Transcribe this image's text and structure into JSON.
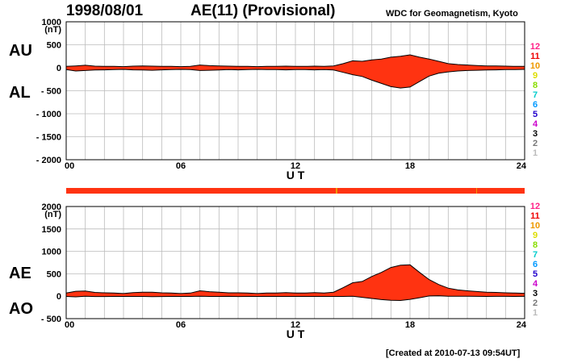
{
  "header": {
    "date": "1998/08/01",
    "title": "AE(11) (Provisional)",
    "institution": "WDC for Geomagnetism, Kyoto",
    "created": "[Created at 2010-07-13 09:54UT]"
  },
  "colors": {
    "fill": "#ff3311",
    "line": "#000000",
    "grid": "#bbbbbb"
  },
  "station_counts": [
    "12",
    "11",
    "10",
    "9",
    "8",
    "7",
    "6",
    "5",
    "4",
    "3",
    "2",
    "1"
  ],
  "station_colors": [
    "#ff2288",
    "#ee0000",
    "#ee9900",
    "#dddd00",
    "#88dd00",
    "#00cccc",
    "#0099ff",
    "#2200cc",
    "#cc00cc",
    "#000000",
    "#777777",
    "#bbbbbb"
  ],
  "chart_data": [
    {
      "type": "area",
      "panel_labels": [
        "AU",
        "AL"
      ],
      "unit": "(nT)",
      "xlabel": "U T",
      "xlim": [
        0,
        24
      ],
      "ylim": [
        -2000,
        1000
      ],
      "xticks": [
        "00",
        "06",
        "12",
        "18",
        "24"
      ],
      "yticks": [
        "1000",
        "500",
        "0",
        "- 500",
        "- 1000",
        "- 1500",
        "- 2000"
      ],
      "grid": true,
      "x": [
        0,
        0.5,
        1,
        1.5,
        2,
        2.5,
        3,
        3.5,
        4,
        4.5,
        5,
        5.5,
        6,
        6.5,
        7,
        7.5,
        8,
        8.5,
        9,
        9.5,
        10,
        10.5,
        11,
        11.5,
        12,
        12.5,
        13,
        13.5,
        14,
        14.5,
        15,
        15.5,
        16,
        16.5,
        17,
        17.5,
        18,
        18.5,
        19,
        19.5,
        20,
        20.5,
        21,
        21.5,
        22,
        22.5,
        23,
        23.5,
        24
      ],
      "series": [
        {
          "name": "AU",
          "values": [
            30,
            40,
            55,
            35,
            30,
            30,
            25,
            35,
            40,
            35,
            30,
            30,
            25,
            30,
            60,
            45,
            40,
            35,
            30,
            30,
            25,
            30,
            30,
            35,
            30,
            30,
            35,
            30,
            40,
            90,
            150,
            140,
            170,
            190,
            230,
            250,
            280,
            230,
            190,
            140,
            90,
            70,
            60,
            50,
            40,
            40,
            35,
            30,
            30
          ]
        },
        {
          "name": "AL",
          "values": [
            -40,
            -70,
            -60,
            -50,
            -45,
            -40,
            -35,
            -45,
            -50,
            -55,
            -45,
            -40,
            -35,
            -40,
            -60,
            -55,
            -50,
            -40,
            -45,
            -40,
            -35,
            -40,
            -40,
            -45,
            -40,
            -40,
            -45,
            -40,
            -50,
            -100,
            -150,
            -190,
            -270,
            -340,
            -410,
            -440,
            -420,
            -300,
            -180,
            -120,
            -90,
            -70,
            -60,
            -55,
            -50,
            -45,
            -40,
            -40,
            -35
          ]
        }
      ]
    },
    {
      "type": "area",
      "panel_labels": [
        "AE",
        "AO"
      ],
      "unit": "(nT)",
      "xlabel": "U T",
      "xlim": [
        0,
        24
      ],
      "ylim": [
        -500,
        2000
      ],
      "xticks": [
        "00",
        "06",
        "12",
        "18",
        "24"
      ],
      "yticks": [
        "2000",
        "1500",
        "1000",
        "500",
        "0",
        "- 500"
      ],
      "grid": true,
      "x": [
        0,
        0.5,
        1,
        1.5,
        2,
        2.5,
        3,
        3.5,
        4,
        4.5,
        5,
        5.5,
        6,
        6.5,
        7,
        7.5,
        8,
        8.5,
        9,
        9.5,
        10,
        10.5,
        11,
        11.5,
        12,
        12.5,
        13,
        13.5,
        14,
        14.5,
        15,
        15.5,
        16,
        16.5,
        17,
        17.5,
        18,
        18.5,
        19,
        19.5,
        20,
        20.5,
        21,
        21.5,
        22,
        22.5,
        23,
        23.5,
        24
      ],
      "series": [
        {
          "name": "AE",
          "values": [
            70,
            110,
            115,
            85,
            75,
            70,
            60,
            80,
            90,
            90,
            75,
            70,
            60,
            70,
            120,
            100,
            90,
            75,
            75,
            70,
            60,
            70,
            70,
            80,
            70,
            70,
            80,
            70,
            90,
            190,
            300,
            330,
            440,
            530,
            640,
            690,
            700,
            530,
            370,
            260,
            180,
            140,
            120,
            105,
            90,
            85,
            75,
            70,
            65
          ]
        },
        {
          "name": "AO",
          "values": [
            -5,
            -15,
            -2,
            -8,
            -8,
            -5,
            -5,
            -5,
            -5,
            -10,
            -8,
            -5,
            -5,
            -5,
            0,
            -5,
            -5,
            -3,
            -8,
            -5,
            -5,
            -5,
            -5,
            -5,
            -5,
            -5,
            -5,
            -5,
            -5,
            -5,
            0,
            -25,
            -50,
            -75,
            -90,
            -95,
            -70,
            -35,
            5,
            10,
            0,
            0,
            0,
            -3,
            -5,
            -3,
            -3,
            -5,
            -3
          ]
        }
      ]
    }
  ]
}
